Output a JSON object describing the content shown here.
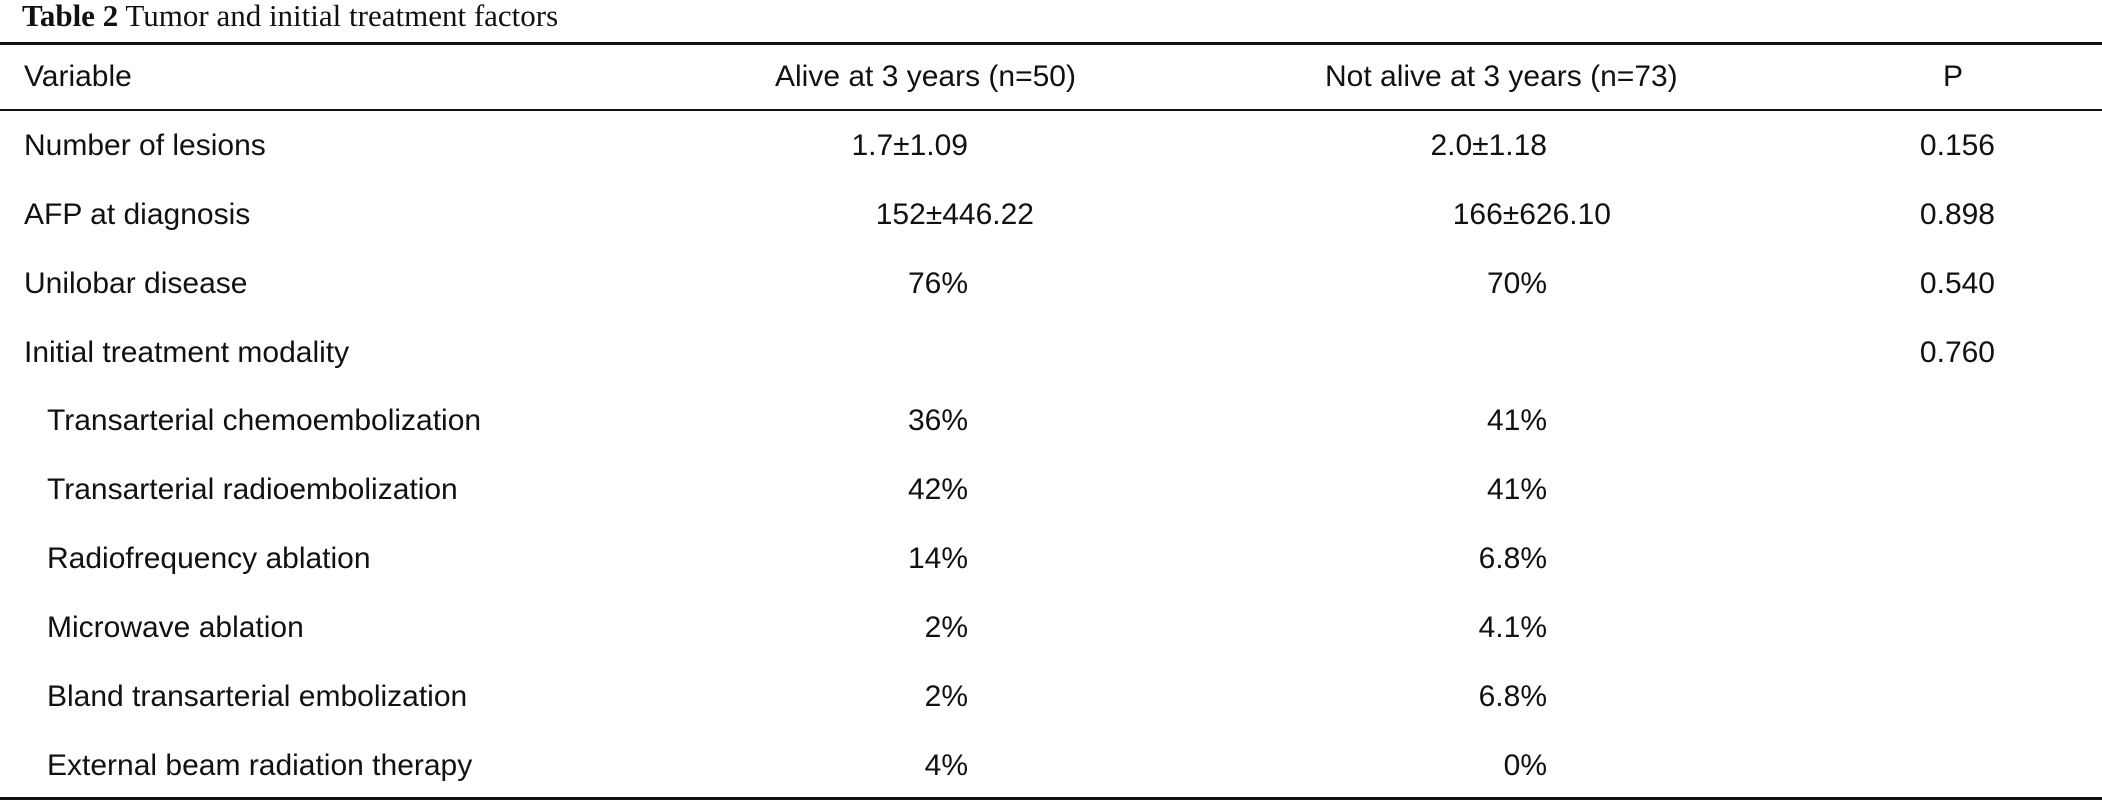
{
  "caption": {
    "label": "Table 2",
    "title": "Tumor and initial treatment factors"
  },
  "header": {
    "variable": "Variable",
    "alive": "Alive at 3 years (n=50)",
    "not_alive": "Not alive at 3 years (n=73)",
    "p": "P"
  },
  "rows": [
    {
      "variable": "Number of lesions",
      "alive": "1.7±1.09",
      "not_alive": "2.0±1.18",
      "p": "0.156"
    },
    {
      "variable": "AFP at diagnosis",
      "alive": "152±446.22",
      "not_alive": "166±626.10",
      "p": "0.898"
    },
    {
      "variable": "Unilobar disease",
      "alive": "76%",
      "not_alive": "70%",
      "p": "0.540"
    },
    {
      "variable": "Initial treatment modality",
      "alive": "",
      "not_alive": "",
      "p": "0.760"
    },
    {
      "variable": "Transarterial chemoembolization",
      "alive": "36%",
      "not_alive": "41%",
      "p": ""
    },
    {
      "variable": "Transarterial radioembolization",
      "alive": "42%",
      "not_alive": "41%",
      "p": ""
    },
    {
      "variable": "Radiofrequency ablation",
      "alive": "14%",
      "not_alive": "6.8%",
      "p": ""
    },
    {
      "variable": "Microwave ablation",
      "alive": "2%",
      "not_alive": "4.1%",
      "p": ""
    },
    {
      "variable": "Bland transarterial embolization",
      "alive": "2%",
      "not_alive": "6.8%",
      "p": ""
    },
    {
      "variable": "External beam radiation therapy",
      "alive": "4%",
      "not_alive": "0%",
      "p": ""
    }
  ]
}
